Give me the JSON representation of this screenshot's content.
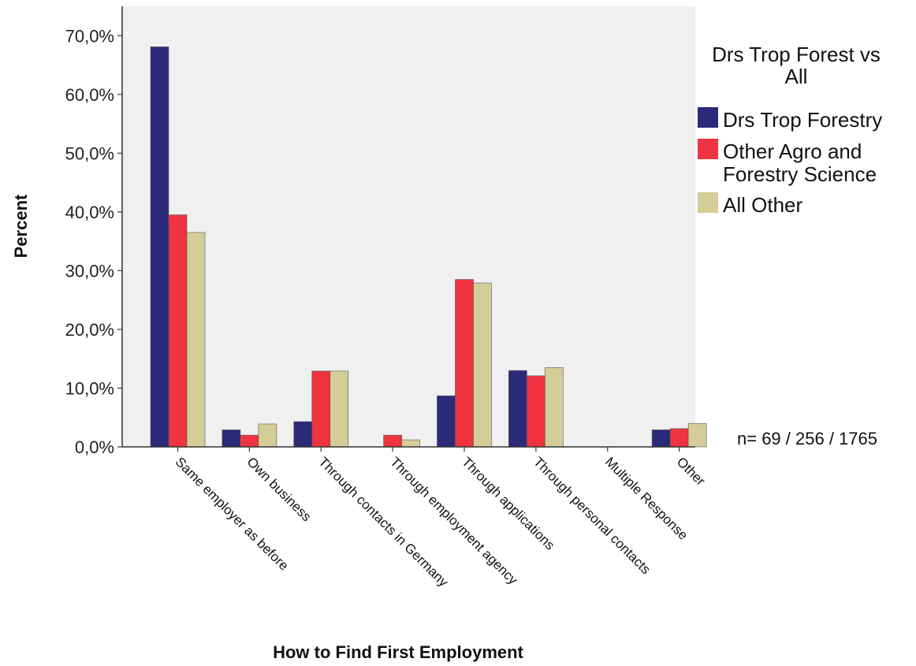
{
  "chart_data": {
    "type": "bar",
    "xlabel": "How to Find First Employment",
    "ylabel": "Percent",
    "ylim": [
      0,
      75
    ],
    "yticks": [
      "0,0%",
      "10,0%",
      "20,0%",
      "30,0%",
      "40,0%",
      "50,0%",
      "60,0%",
      "70,0%"
    ],
    "categories": [
      "Same employer as before",
      "Own business",
      "Through contacts in Germany",
      "Through employment agency",
      "Through applications",
      "Through personal contacts",
      "Multiple Response",
      "Other"
    ],
    "series": [
      {
        "name": "Drs Trop Forestry",
        "color": "#2b2a78",
        "values": [
          68.1,
          2.9,
          4.3,
          0,
          8.7,
          13.0,
          0,
          2.9
        ]
      },
      {
        "name": "Other Agro and Forestry Science",
        "color": "#ef3340",
        "values": [
          39.5,
          2.0,
          12.9,
          2.0,
          28.5,
          12.1,
          0,
          3.1
        ]
      },
      {
        "name": "All Other",
        "color": "#d5cd98",
        "values": [
          36.5,
          3.9,
          12.9,
          1.2,
          27.9,
          13.5,
          0,
          4.0
        ]
      }
    ],
    "legend": {
      "title_lines": [
        "Drs Trop Forest vs",
        "All"
      ],
      "entries": [
        {
          "lines": [
            "Drs Trop Forestry"
          ]
        },
        {
          "lines": [
            "Other Agro and",
            "Forestry Science"
          ]
        },
        {
          "lines": [
            "All Other"
          ]
        }
      ],
      "position": "right"
    },
    "note": "n= 69 / 256 / 1765",
    "plot_background": "#f0f0f0",
    "grid": false
  }
}
